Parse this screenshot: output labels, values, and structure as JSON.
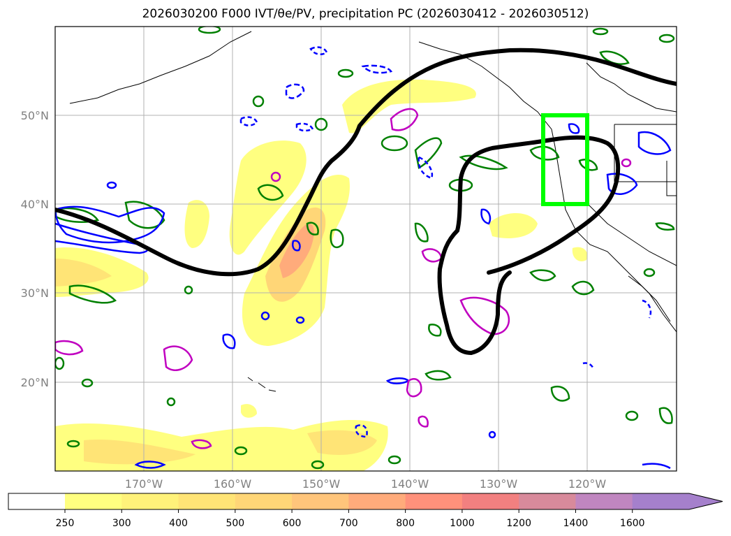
{
  "title": "2026030200 F000 IVT/θe/PV, precipitation PC (2026030412 - 2026030512)",
  "map": {
    "lat_labels": [
      "50°N",
      "40°N",
      "30°N",
      "20°N"
    ],
    "lon_labels": [
      "170°W",
      "160°W",
      "150°W",
      "140°W",
      "130°W",
      "120°W"
    ],
    "lon_range": [
      -180,
      -110
    ],
    "lat_range": [
      10,
      60
    ],
    "box": {
      "lon": [
        -125,
        -120
      ],
      "lat": [
        40,
        50
      ],
      "color": "#00ff00"
    }
  },
  "colorbar": {
    "labels": [
      "250",
      "300",
      "400",
      "500",
      "600",
      "700",
      "800",
      "1000",
      "1200",
      "1400",
      "1600"
    ],
    "colors": [
      "#ffff80",
      "#fff27a",
      "#ffe476",
      "#ffd677",
      "#ffc57b",
      "#ffab7b",
      "#ff917b",
      "#f28080",
      "#d88a9b",
      "#c086c0",
      "#a580cc"
    ],
    "extend": "max"
  },
  "colors": {
    "theta_e_contour": "#000000",
    "pv_positive": "#0000ff",
    "pv_other": "#008000",
    "magenta": "#c000c0"
  }
}
